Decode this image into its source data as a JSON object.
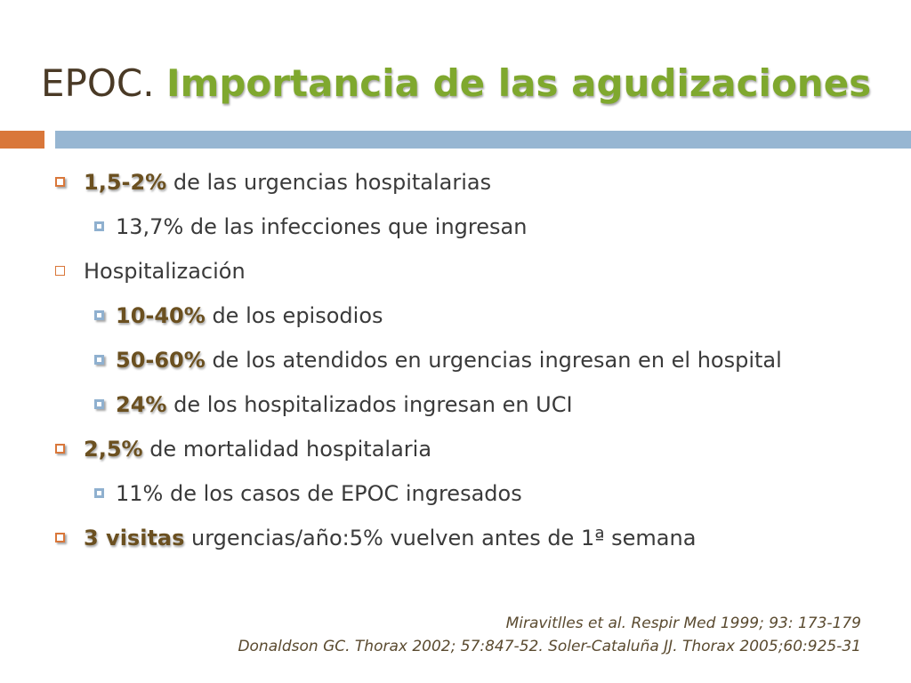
{
  "slide": {
    "title_part1": "EPOC.",
    "title_part2": "Importancia de las agudizaciones"
  },
  "bullets": [
    {
      "emphasis": "1,5-2%",
      "text": " de las urgencias hospitalarias"
    },
    {
      "text": "13,7% de las infecciones que ingresan"
    },
    {
      "text": "Hospitalización"
    },
    {
      "emphasis": "10-40%",
      "text": " de los episodios"
    },
    {
      "emphasis": "50-60%",
      "text": "  de los atendidos en urgencias ingresan en el hospital"
    },
    {
      "emphasis": "24%",
      "text": " de los hospitalizados ingresan en UCI"
    },
    {
      "emphasis": "2,5%",
      "text": " de mortalidad hospitalaria"
    },
    {
      "text": "11% de los casos de EPOC  ingresados"
    },
    {
      "emphasis": "3 visitas",
      "text": " urgencias/año:5% vuelven antes de 1ª semana"
    }
  ],
  "references": [
    "Miravitlles et al. Respir Med 1999; 93: 173-179",
    "Donaldson GC. Thorax 2002; 57:847-52. Soler-Cataluña JJ. Thorax 2005;60:925-31"
  ],
  "colors": {
    "title_accent": "#7fa82e",
    "bar_orange": "#d9773a",
    "bar_blue": "#97b6d2"
  }
}
